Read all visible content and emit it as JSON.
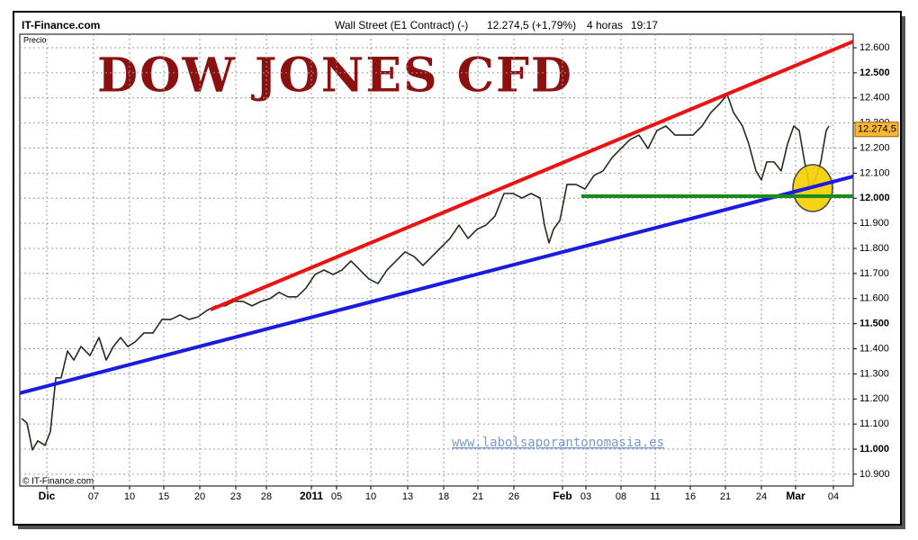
{
  "chart_data": {
    "type": "line",
    "source": "IT-Finance.com",
    "instrument": "Wall Street (E1 Contract) (-)",
    "quote": "12.274,5 (+1,79%)",
    "timeframe": "4 horas",
    "time": "19:17",
    "y_label": "Precio",
    "title": "DOW JONES CFD",
    "watermark": "www.labolsaporantonomasia.es",
    "copyright": "© IT-Finance.com",
    "xlim": [
      0,
      185.2
    ],
    "xticks": [
      {
        "value": 6,
        "label": "Dic"
      },
      {
        "value": 16.4,
        "label": "07"
      },
      {
        "value": 24.4,
        "label": "10"
      },
      {
        "value": 32,
        "label": "15"
      },
      {
        "value": 40,
        "label": "20"
      },
      {
        "value": 48,
        "label": "23"
      },
      {
        "value": 54.8,
        "label": "28"
      },
      {
        "value": 64.8,
        "label": "2011"
      },
      {
        "value": 70.4,
        "label": "05"
      },
      {
        "value": 78,
        "label": "10"
      },
      {
        "value": 86.2,
        "label": "13"
      },
      {
        "value": 94.2,
        "label": "18"
      },
      {
        "value": 101.8,
        "label": "21"
      },
      {
        "value": 109.8,
        "label": "26"
      },
      {
        "value": 120.6,
        "label": "Feb"
      },
      {
        "value": 125.8,
        "label": "03"
      },
      {
        "value": 133.6,
        "label": "08"
      },
      {
        "value": 141.2,
        "label": "11"
      },
      {
        "value": 149,
        "label": "16"
      },
      {
        "value": 156.8,
        "label": "21"
      },
      {
        "value": 164.8,
        "label": "24"
      },
      {
        "value": 172.4,
        "label": "Mar"
      },
      {
        "value": 180.8,
        "label": "04"
      }
    ],
    "ylim": [
      10853,
      12654
    ],
    "yticks": [
      {
        "value": 10900,
        "label": "10.900"
      },
      {
        "value": 11000,
        "label": "11.000"
      },
      {
        "value": 11100,
        "label": "11.100"
      },
      {
        "value": 11200,
        "label": "11.200"
      },
      {
        "value": 11300,
        "label": "11.300"
      },
      {
        "value": 11400,
        "label": "11.400"
      },
      {
        "value": 11500,
        "label": "11.500"
      },
      {
        "value": 11600,
        "label": "11.600"
      },
      {
        "value": 11700,
        "label": "11.700"
      },
      {
        "value": 11800,
        "label": "11.800"
      },
      {
        "value": 11900,
        "label": "11.900"
      },
      {
        "value": 12000,
        "label": "12.000"
      },
      {
        "value": 12100,
        "label": "12.100"
      },
      {
        "value": 12200,
        "label": "12.200"
      },
      {
        "value": 12300,
        "label": "12.300"
      },
      {
        "value": 12400,
        "label": "12.400"
      },
      {
        "value": 12500,
        "label": "12.500"
      },
      {
        "value": 12600,
        "label": "12.600"
      }
    ],
    "grid": true,
    "last_value": 12274.5,
    "last_value_label": "12.274,5",
    "last_value_color": "#f7b733",
    "series": [
      {
        "name": "Wall Street",
        "color": "#1f2f1f",
        "x": [
          0.4,
          1.6,
          2.8,
          4,
          5.6,
          6.8,
          8,
          9.2,
          10.6,
          12,
          13.6,
          15.6,
          17.6,
          19.2,
          20.8,
          22.4,
          24,
          25.6,
          27.6,
          29.6,
          31.6,
          33.6,
          35.6,
          37.6,
          39.6,
          41.6,
          43.6,
          45.6,
          47.6,
          49.6,
          51.6,
          53.6,
          55.6,
          57.6,
          59.6,
          61.6,
          63.6,
          65.6,
          67.6,
          69.6,
          71.6,
          73.6,
          75.6,
          77.6,
          79.6,
          81.6,
          83.6,
          85.6,
          87.6,
          89.6,
          91.6,
          93.6,
          95.6,
          97.6,
          99.6,
          101.6,
          103.6,
          105.6,
          107.6,
          109.6,
          111.6,
          113.6,
          115.6,
          116.6,
          117.6,
          118.6,
          120,
          121.6,
          123.6,
          125.6,
          127.6,
          129.6,
          131.6,
          133.6,
          135.6,
          137.6,
          139.6,
          141.6,
          143.6,
          145.6,
          147.6,
          149.6,
          151.6,
          153.6,
          155.6,
          157.2,
          158.6,
          160.6,
          162,
          163.6,
          164.8,
          166,
          167.6,
          169.2,
          170.6,
          172,
          173.2,
          174.4,
          175.6,
          176.8,
          178,
          179.2,
          179.8
        ],
        "values": [
          11122,
          11104,
          10997,
          11033,
          11015,
          11070,
          11284,
          11284,
          11391,
          11355,
          11409,
          11373,
          11445,
          11355,
          11409,
          11445,
          11409,
          11427,
          11463,
          11463,
          11517,
          11517,
          11535,
          11517,
          11527,
          11553,
          11571,
          11571,
          11589,
          11589,
          11571,
          11589,
          11600,
          11625,
          11607,
          11607,
          11642,
          11696,
          11714,
          11696,
          11714,
          11750,
          11714,
          11678,
          11660,
          11714,
          11750,
          11786,
          11768,
          11732,
          11768,
          11804,
          11840,
          11893,
          11840,
          11876,
          11893,
          11929,
          12019,
          12019,
          12001,
          12019,
          12001,
          11893,
          11822,
          11876,
          11911,
          12055,
          12055,
          12037,
          12091,
          12109,
          12162,
          12198,
          12234,
          12252,
          12198,
          12270,
          12288,
          12252,
          12252,
          12252,
          12288,
          12342,
          12378,
          12414,
          12342,
          12288,
          12216,
          12109,
          12073,
          12145,
          12145,
          12109,
          12216,
          12288,
          12270,
          12145,
          12037,
          12073,
          12145,
          12270,
          12288
        ]
      }
    ],
    "trendlines": [
      {
        "color": "#ee1111",
        "x": [
          42.4,
          185.2
        ],
        "values": [
          11556,
          12625
        ]
      },
      {
        "color": "#1a1ae0",
        "x": [
          0,
          185.2
        ],
        "values": [
          11223,
          12087
        ]
      },
      {
        "color": "#1a8a1a",
        "x": [
          124.8,
          185.2
        ],
        "values": [
          12008,
          12008
        ]
      }
    ]
  }
}
